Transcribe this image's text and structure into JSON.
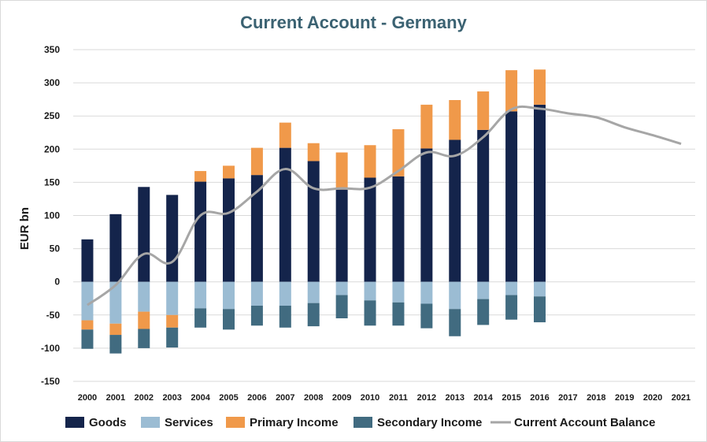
{
  "chart_data": {
    "type": "bar",
    "title": "Current Account - Germany",
    "ylabel": "EUR bn",
    "xlabel": "",
    "ylim": [
      -150,
      350
    ],
    "yticks": [
      350,
      300,
      250,
      200,
      150,
      100,
      50,
      0,
      -50,
      -100,
      -150
    ],
    "grid": true,
    "legend_position": "bottom",
    "categories": [
      "2000",
      "2001",
      "2002",
      "2003",
      "2004",
      "2005",
      "2006",
      "2007",
      "2008",
      "2009",
      "2010",
      "2011",
      "2012",
      "2013",
      "2014",
      "2015",
      "2016",
      "2017",
      "2018",
      "2019",
      "2020",
      "2021"
    ],
    "series": [
      {
        "name": "Goods",
        "type": "bar",
        "color": "#14244b",
        "values": [
          64,
          102,
          143,
          131,
          151,
          156,
          161,
          202,
          182,
          139,
          157,
          159,
          201,
          214,
          229,
          257,
          267,
          null,
          null,
          null,
          null,
          null
        ]
      },
      {
        "name": "Services",
        "type": "bar",
        "color": "#9bbcd3",
        "values": [
          -58,
          -63,
          -45,
          -50,
          -40,
          -41,
          -36,
          -36,
          -32,
          -20,
          -28,
          -31,
          -33,
          -41,
          -26,
          -20,
          -22,
          null,
          null,
          null,
          null,
          null
        ]
      },
      {
        "name": "Primary Income",
        "type": "bar",
        "color": "#f0994a",
        "values_positive": [
          0,
          0,
          0,
          0,
          16,
          19,
          41,
          38,
          27,
          56,
          49,
          71,
          66,
          60,
          58,
          62,
          53,
          null,
          null,
          null,
          null,
          null
        ],
        "values_negative": [
          -14,
          -17,
          -26,
          -19,
          0,
          0,
          0,
          0,
          0,
          0,
          0,
          0,
          0,
          0,
          0,
          0,
          0,
          null,
          null,
          null,
          null,
          null
        ]
      },
      {
        "name": "Secondary Income",
        "type": "bar",
        "color": "#416b80",
        "values": [
          -29,
          -28,
          -29,
          -30,
          -29,
          -31,
          -30,
          -33,
          -35,
          -35,
          -38,
          -35,
          -37,
          -41,
          -39,
          -37,
          -39,
          null,
          null,
          null,
          null,
          null
        ]
      },
      {
        "name": "Current Account Balance",
        "type": "line",
        "color": "#a6a6a6",
        "values": [
          -35,
          -5,
          42,
          30,
          100,
          104,
          136,
          170,
          141,
          141,
          142,
          167,
          195,
          190,
          218,
          260,
          261,
          254,
          248,
          233,
          221,
          208
        ]
      }
    ]
  }
}
